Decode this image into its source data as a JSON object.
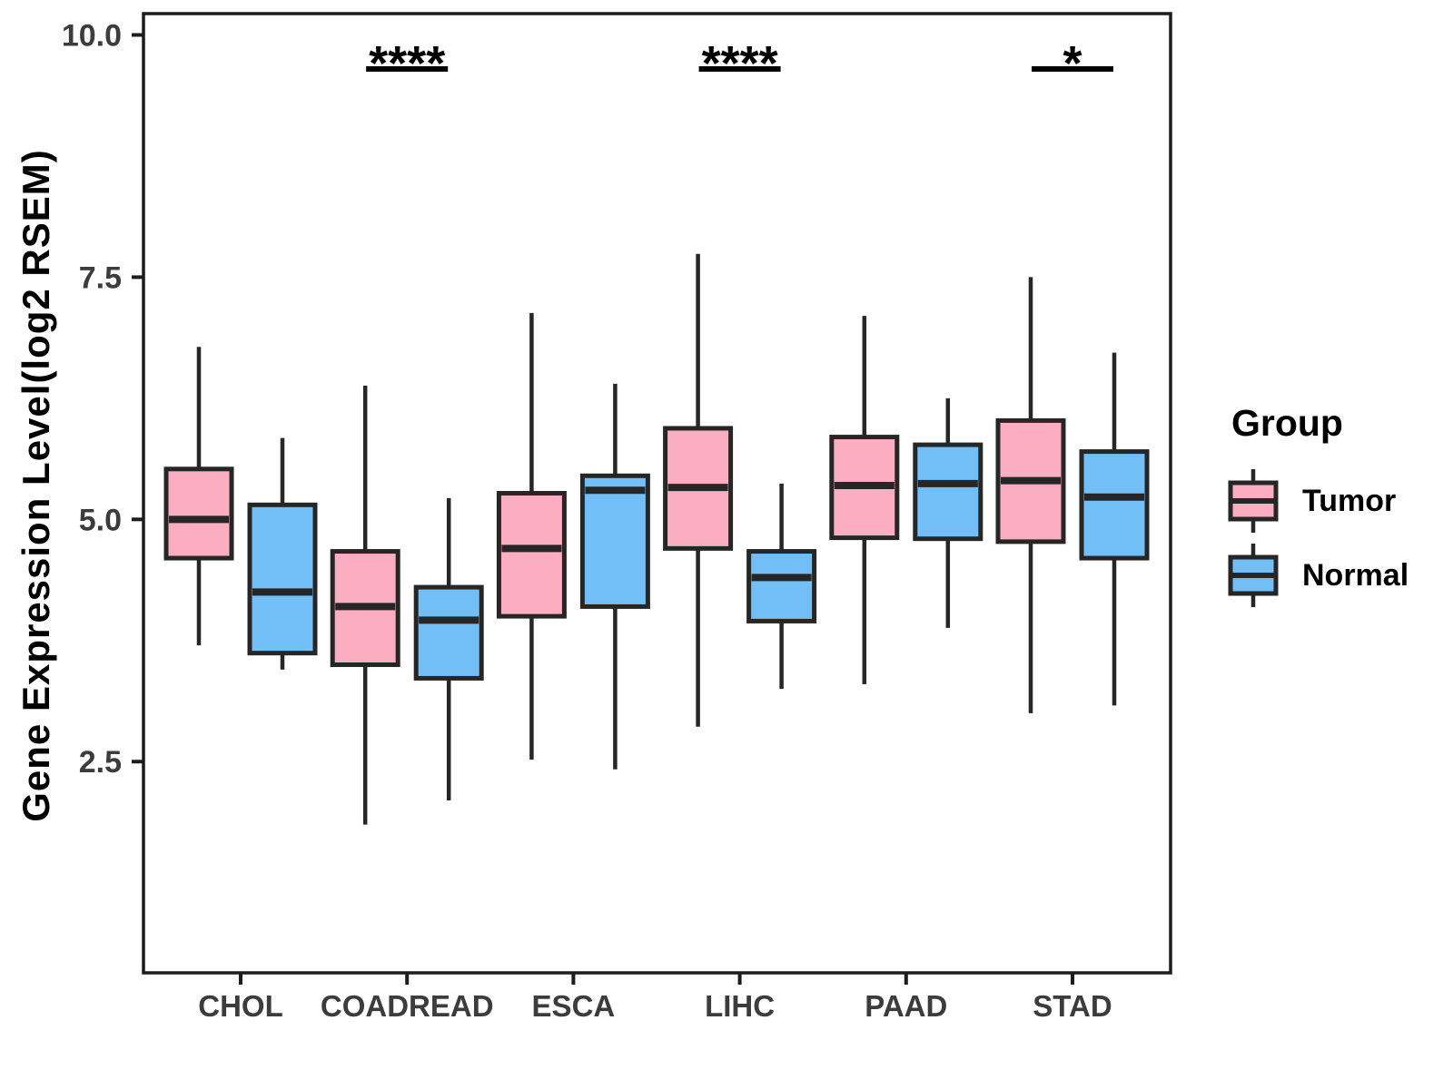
{
  "chart_data": {
    "type": "boxplot",
    "title": "",
    "xlabel": "",
    "ylabel": "Gene Expression Level(log2 RSEM)",
    "categories": [
      "CHOL",
      "COADREAD",
      "ESCA",
      "LIHC",
      "PAAD",
      "STAD"
    ],
    "y_ticks": [
      {
        "value": 10.0,
        "label": "10.0"
      },
      {
        "value": 7.5,
        "label": "7.5"
      },
      {
        "value": 5.0,
        "label": "5.0"
      },
      {
        "value": 2.5,
        "label": "2.5"
      }
    ],
    "ylim": [
      0.32,
      10.22
    ],
    "grid": false,
    "colors": {
      "tumor_fill": "#FBAEC2",
      "normal_fill": "#72BFF8",
      "box_stroke": "#262626",
      "axis_stroke": "#1c1c1c",
      "tick_text": "#3C3C3C",
      "annotation": "#000000"
    },
    "legend": {
      "title": "Group",
      "position": "right",
      "entries": [
        {
          "label": "Tumor",
          "color": "#FBAEC2"
        },
        {
          "label": "Normal",
          "color": "#72BFF8"
        }
      ]
    },
    "series": [
      {
        "name": "Tumor",
        "color": "#FBAEC2",
        "boxes": [
          {
            "category": "CHOL",
            "min": 3.7,
            "q1": 4.6,
            "median": 5.0,
            "q3": 5.52,
            "max": 6.78
          },
          {
            "category": "COADREAD",
            "min": 1.85,
            "q1": 3.5,
            "median": 4.1,
            "q3": 4.67,
            "max": 6.38
          },
          {
            "category": "ESCA",
            "min": 2.52,
            "q1": 4.0,
            "median": 4.7,
            "q3": 5.27,
            "max": 7.13
          },
          {
            "category": "LIHC",
            "min": 2.86,
            "q1": 4.7,
            "median": 5.33,
            "q3": 5.94,
            "max": 7.74
          },
          {
            "category": "PAAD",
            "min": 3.3,
            "q1": 4.81,
            "median": 5.35,
            "q3": 5.85,
            "max": 7.1
          },
          {
            "category": "STAD",
            "min": 3.0,
            "q1": 4.77,
            "median": 5.4,
            "q3": 6.02,
            "max": 7.5
          }
        ]
      },
      {
        "name": "Normal",
        "color": "#72BFF8",
        "boxes": [
          {
            "category": "CHOL",
            "min": 3.45,
            "q1": 3.62,
            "median": 4.25,
            "q3": 5.15,
            "max": 5.84
          },
          {
            "category": "COADREAD",
            "min": 2.1,
            "q1": 3.36,
            "median": 3.96,
            "q3": 4.3,
            "max": 5.22
          },
          {
            "category": "ESCA",
            "min": 2.42,
            "q1": 4.1,
            "median": 5.3,
            "q3": 5.45,
            "max": 6.4
          },
          {
            "category": "LIHC",
            "min": 3.25,
            "q1": 3.95,
            "median": 4.4,
            "q3": 4.67,
            "max": 5.37
          },
          {
            "category": "PAAD",
            "min": 3.88,
            "q1": 4.8,
            "median": 5.37,
            "q3": 5.77,
            "max": 6.25
          },
          {
            "category": "STAD",
            "min": 3.08,
            "q1": 4.6,
            "median": 5.23,
            "q3": 5.7,
            "max": 6.72
          }
        ]
      }
    ],
    "significance": [
      {
        "category": "COADREAD",
        "label": "****"
      },
      {
        "category": "LIHC",
        "label": "****"
      },
      {
        "category": "STAD",
        "label": "*"
      }
    ]
  }
}
